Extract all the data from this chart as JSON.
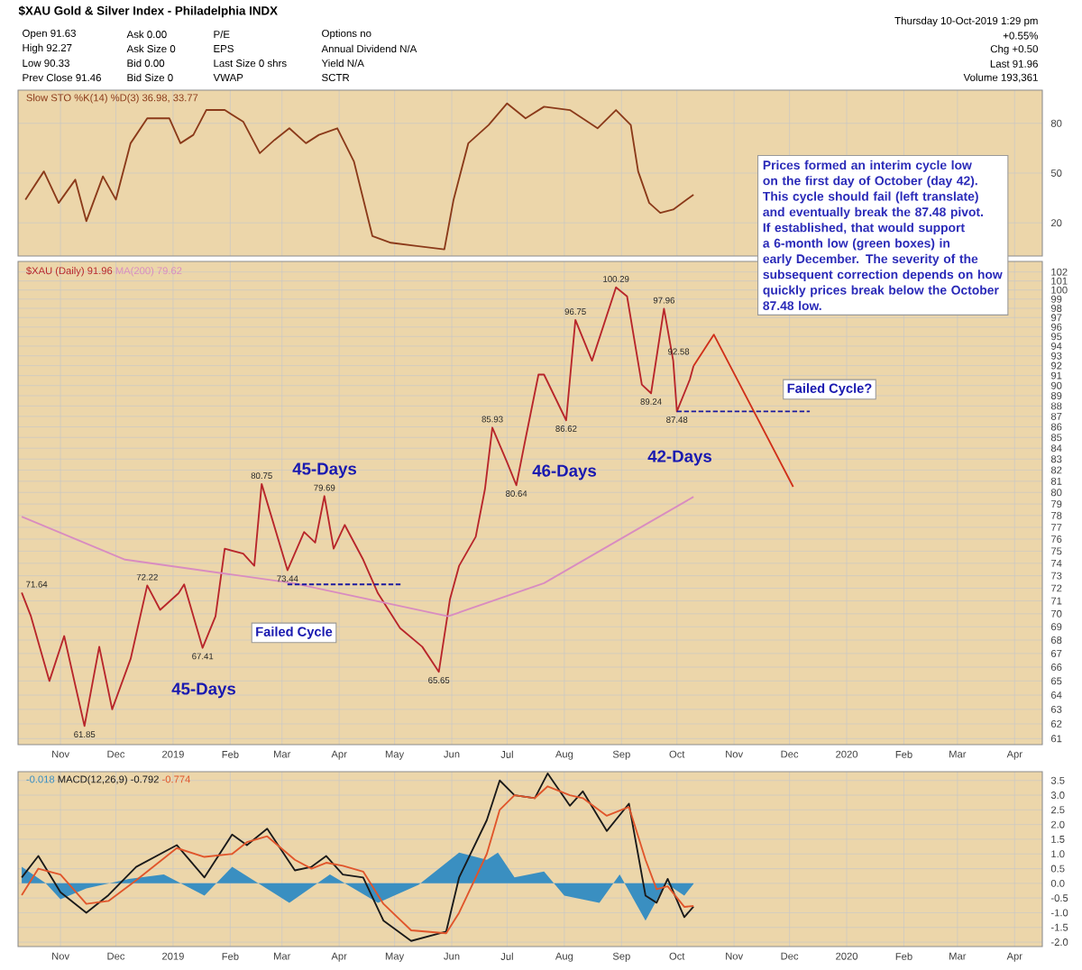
{
  "chart_data": [
    {
      "type": "line",
      "title": "$XAU Gold & Silver Index - Philadelphia INDX",
      "annotations": [
        "Open 91.63",
        "High 92.27",
        "Low 90.33",
        "Prev Close 91.46",
        "Ask 0.00",
        "Ask Size 0",
        "Bid 0.00",
        "Bid Size 0",
        "P/E",
        "EPS",
        "Last Size 0 shrs",
        "VWAP",
        "Options no",
        "Annual Dividend N/A",
        "Yield N/A",
        "SCTR",
        "Thursday 10-Oct-2019 1:29 pm",
        "+0.55%",
        "Chg +0.50",
        "Last 91.96",
        "Volume 193,361"
      ],
      "xlim": [
        "2018-10-09",
        "2020-04-16"
      ],
      "ylim": [
        0,
        100
      ],
      "yticks": [
        20,
        50,
        80
      ],
      "xticks": [
        {
          "value": "2018-11-01",
          "label": null
        },
        {
          "value": "2018-12-01",
          "label": null
        },
        {
          "value": "2019-01-01",
          "label": null
        },
        {
          "value": "2019-02-01",
          "label": null
        },
        {
          "value": "2019-03-01",
          "label": null
        },
        {
          "value": "2019-04-01",
          "label": null
        },
        {
          "value": "2019-05-01",
          "label": null
        },
        {
          "value": "2019-06-01",
          "label": null
        },
        {
          "value": "2019-07-01",
          "label": null
        },
        {
          "value": "2019-08-01",
          "label": null
        },
        {
          "value": "2019-09-01",
          "label": null
        },
        {
          "value": "2019-10-01",
          "label": null
        },
        {
          "value": "2019-11-01",
          "label": null
        },
        {
          "value": "2019-12-01",
          "label": null
        },
        {
          "value": "2020-01-01",
          "label": null
        },
        {
          "value": "2020-02-01",
          "label": null
        },
        {
          "value": "2020-03-01",
          "label": null
        },
        {
          "value": "2020-04-01",
          "label": null
        }
      ],
      "tick_labels": "y",
      "grid": true,
      "legend": "top left",
      "series": [
        {
          "name": "Slow STO %K(14) %D(3) 36.98, 33.77",
          "color": "#8b3a1a",
          "x": [
            "2018-10-13",
            "2018-10-23",
            "2018-10-31",
            "2018-11-09",
            "2018-11-15",
            "2018-11-24",
            "2018-12-01",
            "2018-12-09",
            "2018-12-18",
            "2018-12-30",
            "2019-01-05",
            "2019-01-12",
            "2019-01-19",
            "2019-01-29",
            "2019-02-08",
            "2019-02-17",
            "2019-02-25",
            "2019-03-05",
            "2019-03-14",
            "2019-03-21",
            "2019-03-31",
            "2019-04-09",
            "2019-04-19",
            "2019-04-29",
            "2019-05-13",
            "2019-05-28",
            "2019-06-02",
            "2019-06-10",
            "2019-06-21",
            "2019-07-01",
            "2019-07-11",
            "2019-07-21",
            "2019-08-04",
            "2019-08-19",
            "2019-08-29",
            "2019-09-06",
            "2019-09-10",
            "2019-09-16",
            "2019-09-22",
            "2019-09-29",
            "2019-10-10"
          ],
          "values": [
            34,
            51,
            32,
            46,
            21,
            48,
            34,
            68,
            83,
            83,
            68,
            73,
            88,
            88,
            81,
            62,
            70,
            77,
            68,
            73,
            77,
            57,
            12,
            8,
            6,
            4,
            34,
            68,
            79,
            92,
            83,
            90,
            88,
            77,
            88,
            79,
            51,
            32,
            26,
            28,
            37
          ]
        }
      ]
    },
    {
      "type": "line",
      "log": "y",
      "grid": true,
      "legend": "top left",
      "annotations": [
        "Prices formed an interim cycle low on the first day of October (day 42). This cycle should fail (left translate) and eventually break the 87.48 pivot. If established, that would support a 6-month low (green boxes) in early December. The severity of the subsequent correction depends on how quickly prices break below the October 87.48 low.",
        "45-Days",
        "45-Days",
        "46-Days",
        "42-Days",
        "Failed Cycle",
        "Failed Cycle?",
        {
          "text": "71.64",
          "x": "2018-10-11",
          "y": 71.64
        },
        {
          "text": "61.85",
          "x": "2018-11-14",
          "y": 61.85
        },
        {
          "text": "72.22",
          "x": "2018-12-18",
          "y": 72.22
        },
        {
          "text": "67.41",
          "x": "2019-01-17",
          "y": 67.41
        },
        {
          "text": "80.75",
          "x": "2019-02-18",
          "y": 80.75
        },
        {
          "text": "73.44",
          "x": "2019-03-04",
          "y": 73.44
        },
        {
          "text": "79.69",
          "x": "2019-03-24",
          "y": 79.69
        },
        {
          "text": "65.65",
          "x": "2019-05-25",
          "y": 65.65
        },
        {
          "text": "85.93",
          "x": "2019-06-23",
          "y": 85.93
        },
        {
          "text": "80.64",
          "x": "2019-07-06",
          "y": 80.64
        },
        {
          "text": "86.62",
          "x": "2019-08-02",
          "y": 86.62
        },
        {
          "text": "96.75",
          "x": "2019-08-07",
          "y": 96.75
        },
        {
          "text": "100.29",
          "x": "2019-08-29",
          "y": 100.29
        },
        {
          "text": "89.24",
          "x": "2019-09-17",
          "y": 89.24
        },
        {
          "text": "97.96",
          "x": "2019-09-24",
          "y": 97.96
        },
        {
          "text": "87.48",
          "x": "2019-10-01",
          "y": 87.48
        },
        {
          "text": "92.58",
          "x": "2019-10-10",
          "y": 92.58
        }
      ],
      "xlim": [
        "2018-10-09",
        "2020-04-16"
      ],
      "ylim": [
        60.6,
        103.2
      ],
      "yticks": [
        61,
        62,
        63,
        64,
        65,
        66,
        67,
        68,
        69,
        70,
        71,
        72,
        73,
        74,
        75,
        76,
        77,
        78,
        79,
        80,
        81,
        82,
        83,
        84,
        85,
        86,
        87,
        88,
        89,
        90,
        91,
        92,
        93,
        94,
        95,
        96,
        97,
        98,
        99,
        100,
        101,
        102
      ],
      "xticks": [
        {
          "value": "2018-11-01",
          "label": "Nov"
        },
        {
          "value": "2018-12-01",
          "label": "Dec"
        },
        {
          "value": "2019-01-01",
          "label": "2019"
        },
        {
          "value": "2019-02-01",
          "label": "Feb"
        },
        {
          "value": "2019-03-01",
          "label": "Mar"
        },
        {
          "value": "2019-04-01",
          "label": "Apr"
        },
        {
          "value": "2019-05-01",
          "label": "May"
        },
        {
          "value": "2019-06-01",
          "label": "Jun"
        },
        {
          "value": "2019-07-01",
          "label": "Jul"
        },
        {
          "value": "2019-08-01",
          "label": "Aug"
        },
        {
          "value": "2019-09-01",
          "label": "Sep"
        },
        {
          "value": "2019-10-01",
          "label": "Oct"
        },
        {
          "value": "2019-11-01",
          "label": "Nov"
        },
        {
          "value": "2019-12-01",
          "label": "Dec"
        },
        {
          "value": "2020-01-01",
          "label": "2020"
        },
        {
          "value": "2020-02-01",
          "label": "Feb"
        },
        {
          "value": "2020-03-01",
          "label": "Mar"
        },
        {
          "value": "2020-04-01",
          "label": "Apr"
        }
      ],
      "series": [
        {
          "name": "$XAU (Daily) 91.96",
          "color": "#b8262b",
          "x": [
            "2018-10-11",
            "2018-10-16",
            "2018-10-26",
            "2018-11-03",
            "2018-11-14",
            "2018-11-22",
            "2018-11-29",
            "2018-12-09",
            "2018-12-18",
            "2018-12-25",
            "2019-01-04",
            "2019-01-07",
            "2019-01-17",
            "2019-01-24",
            "2019-01-29",
            "2019-02-08",
            "2019-02-14",
            "2019-02-18",
            "2019-03-04",
            "2019-03-13",
            "2019-03-19",
            "2019-03-24",
            "2019-03-29",
            "2019-04-04",
            "2019-04-14",
            "2019-04-22",
            "2019-05-04",
            "2019-05-16",
            "2019-05-25",
            "2019-05-31",
            "2019-06-05",
            "2019-06-14",
            "2019-06-19",
            "2019-06-23",
            "2019-07-01",
            "2019-07-06",
            "2019-07-11",
            "2019-07-18",
            "2019-07-21",
            "2019-08-02",
            "2019-08-07",
            "2019-08-16",
            "2019-08-29",
            "2019-09-04",
            "2019-09-12",
            "2019-09-17",
            "2019-09-24",
            "2019-09-29",
            "2019-10-01",
            "2019-10-08",
            "2019-10-10"
          ],
          "values": [
            71.64,
            69.8,
            65.0,
            68.3,
            61.85,
            67.5,
            63.0,
            66.6,
            72.22,
            70.3,
            71.6,
            72.3,
            67.41,
            69.8,
            75.2,
            74.8,
            73.8,
            80.75,
            73.44,
            76.6,
            75.7,
            79.69,
            75.2,
            77.2,
            74.3,
            71.6,
            68.9,
            67.5,
            65.65,
            71.1,
            73.8,
            76.2,
            80.3,
            85.93,
            82.7,
            80.64,
            84.9,
            91.1,
            91.1,
            86.62,
            96.75,
            92.5,
            100.29,
            99.3,
            90.1,
            89.24,
            97.96,
            92.5,
            87.48,
            90.6,
            91.96
          ]
        },
        {
          "name": "MA(200) 79.62",
          "color": "#d98cc0",
          "x": [
            "2018-10-11",
            "2018-12-06",
            "2019-03-07",
            "2019-05-30",
            "2019-07-21",
            "2019-09-07",
            "2019-10-10"
          ],
          "values": [
            77.9,
            74.3,
            72.4,
            69.8,
            72.4,
            76.6,
            79.62
          ]
        },
        {
          "color": "#1a1aa0",
          "line_style": "dashed",
          "x": [
            "2019-03-04",
            "2019-05-05"
          ],
          "values": [
            72.3,
            72.3
          ]
        },
        {
          "color": "#1a1aa0",
          "line_style": "dashed",
          "x": [
            "2019-10-01",
            "2019-12-12"
          ],
          "values": [
            87.48,
            87.48
          ]
        },
        {
          "color": "#d0301a",
          "x": [
            "2019-10-10",
            "2019-10-21",
            "2019-12-03"
          ],
          "values": [
            91.96,
            95.2,
            80.5
          ]
        }
      ]
    },
    {
      "type": "line",
      "grid": true,
      "legend": "top left",
      "xlim": [
        "2018-10-09",
        "2020-04-16"
      ],
      "ylim": [
        -2.15,
        3.8
      ],
      "yticks": [
        {
          "value": -2,
          "label": "-2.0"
        },
        -1.5,
        {
          "value": -1,
          "label": "-1.0"
        },
        -0.5,
        {
          "value": 0,
          "label": "0.0"
        },
        0.5,
        {
          "value": 1,
          "label": "1.0"
        },
        1.5,
        {
          "value": 2,
          "label": "2.0"
        },
        2.5,
        {
          "value": 3,
          "label": "3.0"
        },
        3.5
      ],
      "xticks": [
        {
          "value": "2018-11-01",
          "label": "Nov"
        },
        {
          "value": "2018-12-01",
          "label": "Dec"
        },
        {
          "value": "2019-01-01",
          "label": "2019"
        },
        {
          "value": "2019-02-01",
          "label": "Feb"
        },
        {
          "value": "2019-03-01",
          "label": "Mar"
        },
        {
          "value": "2019-04-01",
          "label": "Apr"
        },
        {
          "value": "2019-05-01",
          "label": "May"
        },
        {
          "value": "2019-06-01",
          "label": "Jun"
        },
        {
          "value": "2019-07-01",
          "label": "Jul"
        },
        {
          "value": "2019-08-01",
          "label": "Aug"
        },
        {
          "value": "2019-09-01",
          "label": "Sep"
        },
        {
          "value": "2019-10-01",
          "label": "Oct"
        },
        {
          "value": "2019-11-01",
          "label": "Nov"
        },
        {
          "value": "2019-12-01",
          "label": "Dec"
        },
        {
          "value": "2020-01-01",
          "label": "2020"
        },
        {
          "value": "2020-02-01",
          "label": "Feb"
        },
        {
          "value": "2020-03-01",
          "label": "Mar"
        },
        {
          "value": "2020-04-01",
          "label": "Apr"
        }
      ],
      "series": [
        {
          "name": "-0.018",
          "type": "area",
          "color": "#3a8fc1",
          "x": [
            "2018-10-11",
            "2018-10-24",
            "2018-11-01",
            "2018-11-15",
            "2018-12-08",
            "2018-12-27",
            "2019-01-18",
            "2019-02-02",
            "2019-03-05",
            "2019-03-27",
            "2019-04-22",
            "2019-05-14",
            "2019-06-05",
            "2019-06-20",
            "2019-06-26",
            "2019-07-05",
            "2019-07-21",
            "2019-08-01",
            "2019-08-20",
            "2019-08-31",
            "2019-09-14",
            "2019-09-25",
            "2019-10-05",
            "2019-10-10"
          ],
          "values": [
            0.56,
            0,
            -0.54,
            -0.17,
            0.15,
            0.3,
            -0.42,
            0.56,
            -0.66,
            0.3,
            -0.66,
            -0.05,
            1.05,
            0.8,
            1.05,
            0.2,
            0.4,
            -0.42,
            -0.66,
            0.3,
            -1.27,
            0,
            -0.42,
            -0.02
          ]
        },
        {
          "name": "MACD(12,26,9) -0.792",
          "color": "#1a1a1a",
          "x": [
            "2018-10-11",
            "2018-10-20",
            "2018-11-01",
            "2018-11-15",
            "2018-11-27",
            "2018-12-12",
            "2019-01-03",
            "2019-01-18",
            "2019-02-02",
            "2019-02-10",
            "2019-02-21",
            "2019-03-08",
            "2019-03-17",
            "2019-03-25",
            "2019-04-03",
            "2019-04-14",
            "2019-04-25",
            "2019-05-10",
            "2019-05-29",
            "2019-06-05",
            "2019-06-20",
            "2019-06-27",
            "2019-07-05",
            "2019-07-16",
            "2019-07-23",
            "2019-08-04",
            "2019-08-11",
            "2019-08-24",
            "2019-09-05",
            "2019-09-14",
            "2019-09-20",
            "2019-09-26",
            "2019-10-05",
            "2019-10-10"
          ],
          "values": [
            0.2,
            0.93,
            -0.3,
            -1.0,
            -0.4,
            0.56,
            1.3,
            0.2,
            1.66,
            1.3,
            1.86,
            0.44,
            0.56,
            0.93,
            0.3,
            0.2,
            -1.27,
            -1.96,
            -1.64,
            0.2,
            2.15,
            3.5,
            3.0,
            2.9,
            3.74,
            2.64,
            3.13,
            1.78,
            2.71,
            -0.42,
            -0.66,
            0.15,
            -1.15,
            -0.79
          ]
        },
        {
          "name": "-0.774",
          "color": "#e0552b",
          "x": [
            "2018-10-11",
            "2018-10-20",
            "2018-11-01",
            "2018-11-15",
            "2018-11-27",
            "2018-12-12",
            "2019-01-03",
            "2019-01-18",
            "2019-02-02",
            "2019-02-10",
            "2019-02-21",
            "2019-03-08",
            "2019-03-17",
            "2019-03-25",
            "2019-04-03",
            "2019-04-14",
            "2019-04-25",
            "2019-05-10",
            "2019-05-29",
            "2019-06-05",
            "2019-06-20",
            "2019-06-27",
            "2019-07-05",
            "2019-07-16",
            "2019-07-23",
            "2019-08-04",
            "2019-08-11",
            "2019-08-24",
            "2019-09-05",
            "2019-09-14",
            "2019-09-20",
            "2019-09-26",
            "2019-10-05",
            "2019-10-10"
          ],
          "values": [
            -0.4,
            0.5,
            0.3,
            -0.7,
            -0.6,
            0.1,
            1.2,
            0.9,
            1.0,
            1.4,
            1.6,
            0.8,
            0.5,
            0.7,
            0.6,
            0.4,
            -0.7,
            -1.6,
            -1.7,
            -1.0,
            1.0,
            2.5,
            3.0,
            2.9,
            3.3,
            3.0,
            2.9,
            2.3,
            2.6,
            0.8,
            -0.2,
            -0.1,
            -0.8,
            -0.77
          ]
        }
      ]
    }
  ]
}
